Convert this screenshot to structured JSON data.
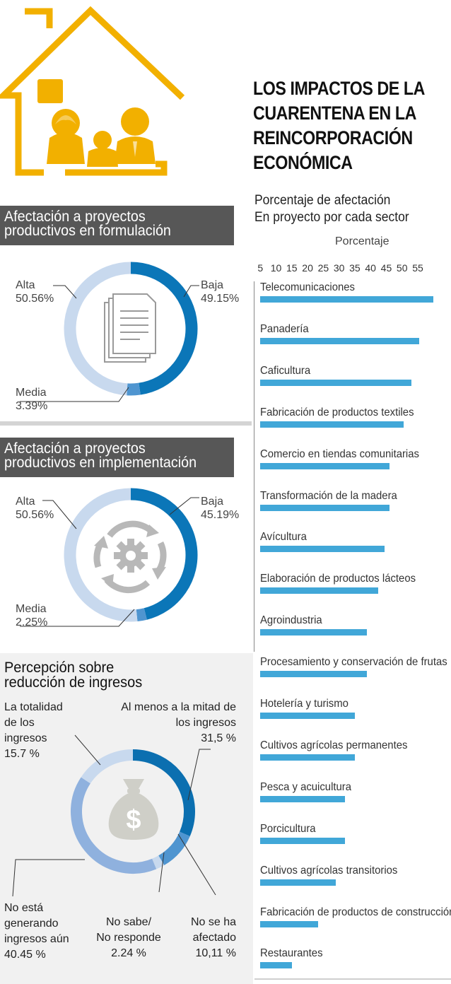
{
  "title_lines": [
    "LOS IMPACTOS DE LA",
    "CUARENTENA EN LA",
    "REINCORPORACIÓN",
    "ECONÓMICA"
  ],
  "subtitle_lines": [
    "Porcentaje de afectación",
    "En proyecto por cada sector"
  ],
  "colors": {
    "accent_yellow": "#f2b000",
    "bar_blue": "#41a7d8",
    "donut_dark": "#0b76b8",
    "donut_light": "#c8d9ee",
    "donut_mid": "#4f95d0",
    "header_gray": "#575757"
  },
  "icons": [
    "house-family-icon",
    "document-stack-icon",
    "gear-cycle-icon",
    "money-bag-icon"
  ],
  "formulation": {
    "heading_lines": [
      "Afectación a proyectos",
      "productivos en formulación"
    ],
    "labels": {
      "alta_name": "Alta",
      "alta_value": "50.56%",
      "baja_name": "Baja",
      "baja_value": "49.15%",
      "media_name": "Media",
      "media_value": "3.39%"
    }
  },
  "implementation": {
    "heading_lines": [
      "Afectación a proyectos",
      "productivos en implementación"
    ],
    "labels": {
      "alta_name": "Alta",
      "alta_value": "50.56%",
      "baja_name": "Baja",
      "baja_value": "45.19%",
      "media_name": "Media",
      "media_value": "2.25%"
    }
  },
  "income": {
    "heading_lines": [
      "Percepción sobre",
      "reducción de ingresos"
    ],
    "labels": {
      "totalidad": [
        "La totalidad",
        "de los",
        "ingresos",
        "15.7 %"
      ],
      "mitad": [
        "Al menos a la mitad de",
        "los ingresos",
        "31,5 %"
      ],
      "no_generando": [
        "No está",
        "generando",
        "ingresos aún",
        "40.45 %"
      ],
      "no_sabe": [
        "No sabe/",
        "No responde",
        "2.24 %"
      ],
      "no_afectado": [
        "No se ha",
        "afectado",
        "10,11 %"
      ]
    }
  },
  "chart_data": [
    {
      "type": "pie",
      "title": "Afectación a proyectos productivos en formulación",
      "labels": [
        "Baja",
        "Media",
        "Alta"
      ],
      "values": [
        49.15,
        3.39,
        50.56
      ],
      "colors": [
        "#0b76b8",
        "#4f95d0",
        "#c8d9ee"
      ]
    },
    {
      "type": "pie",
      "title": "Afectación a proyectos productivos en implementación",
      "labels": [
        "Baja",
        "Media",
        "Alta"
      ],
      "values": [
        45.19,
        2.25,
        50.56
      ],
      "colors": [
        "#0b76b8",
        "#4f95d0",
        "#c8d9ee"
      ]
    },
    {
      "type": "pie",
      "title": "Percepción sobre reducción de ingresos",
      "labels": [
        "Al menos a la mitad de los ingresos",
        "No se ha afectado",
        "No sabe/ No responde",
        "No está generando ingresos aún",
        "La totalidad de los ingresos"
      ],
      "values": [
        31.5,
        10.11,
        2.24,
        40.45,
        15.7
      ],
      "colors": [
        "#0b6fb0",
        "#4f95d0",
        "#c8d9ee",
        "#8fb1de",
        "#c8d9ee"
      ]
    },
    {
      "type": "bar",
      "orientation": "horizontal",
      "title": "Porcentaje de afectación En proyecto por cada sector",
      "xlabel": "Porcentaje",
      "xticks": [
        5,
        10,
        15,
        20,
        25,
        30,
        35,
        40,
        45,
        50,
        55
      ],
      "xlim": [
        0,
        55
      ],
      "categories": [
        "Telecomunicaciones",
        "Panadería",
        "Caficultura",
        "Fabricación de productos textiles",
        "Comercio en tiendas comunitarias",
        "Transformación de la madera",
        "Avícultura",
        "Elaboración de productos lácteos",
        "Agroindustria",
        "Procesamiento y conservación de frutas",
        "Hotelería y turismo",
        "Cultivos agrícolas permanentes",
        "Pesca y acuicultura",
        "Porcicultura",
        "Cultivos agrícolas transitorios",
        "Fabricación de productos de construcción",
        "Restaurantes"
      ],
      "values": [
        55,
        50.5,
        48,
        45.5,
        41,
        41,
        39.5,
        37.5,
        34,
        34,
        30,
        30,
        27,
        27,
        24,
        18.5,
        10
      ]
    }
  ]
}
